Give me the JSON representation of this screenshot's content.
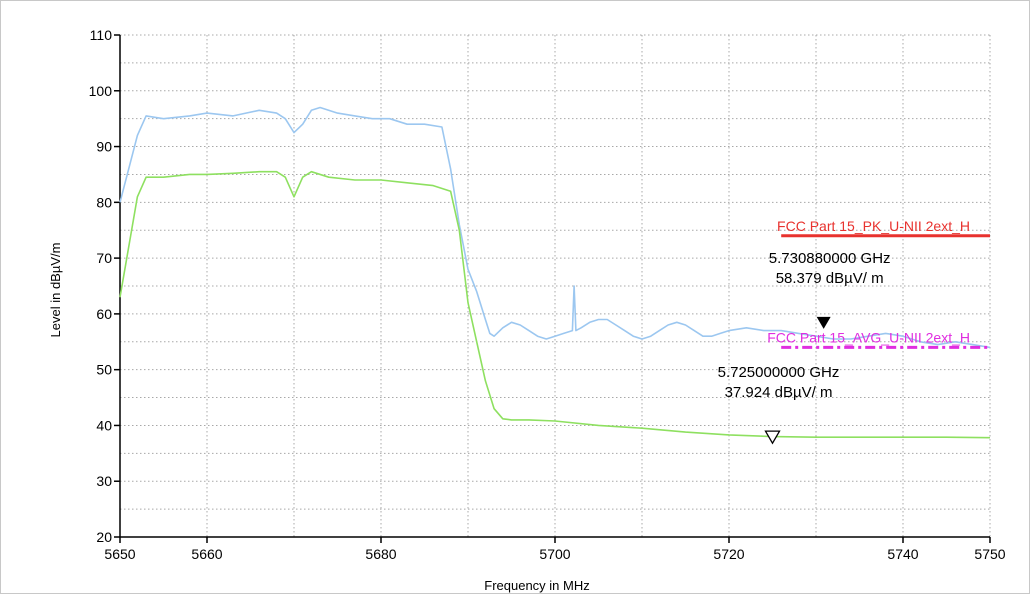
{
  "chart_data": {
    "type": "line",
    "xlabel": "Frequency in MHz",
    "ylabel": "Level in dBµV/m",
    "xlim": [
      5650,
      5750
    ],
    "ylim": [
      20,
      110
    ],
    "x_ticks": [
      5650,
      5660,
      5680,
      5700,
      5720,
      5740,
      5750
    ],
    "y_ticks": [
      20,
      30,
      40,
      50,
      60,
      70,
      80,
      90,
      100,
      110
    ],
    "grid": true,
    "series": [
      {
        "color": "#9cc7f0",
        "x": [
          5650,
          5651,
          5652,
          5653,
          5655,
          5658,
          5660,
          5663,
          5666,
          5668,
          5669,
          5670,
          5671,
          5672,
          5673,
          5675,
          5677,
          5679,
          5681,
          5683,
          5685,
          5687,
          5688,
          5689,
          5690,
          5691,
          5692,
          5692.5,
          5693,
          5694,
          5695,
          5696,
          5697,
          5698,
          5699,
          5700,
          5701,
          5702,
          5702.2,
          5702.4,
          5703,
          5704,
          5705,
          5706,
          5707,
          5708,
          5709,
          5710,
          5711,
          5712,
          5713,
          5714,
          5715,
          5716,
          5717,
          5718,
          5719,
          5720,
          5722,
          5724,
          5726,
          5728,
          5730,
          5732,
          5734,
          5736,
          5738,
          5740,
          5742,
          5744,
          5746,
          5748,
          5750
        ],
        "y": [
          80,
          86,
          92,
          95.5,
          95,
          95.5,
          96,
          95.5,
          96.5,
          96,
          95,
          92.5,
          94,
          96.5,
          97,
          96,
          95.5,
          95,
          95,
          94,
          94,
          93.5,
          86,
          76,
          68,
          64,
          59,
          56.5,
          56,
          57.5,
          58.5,
          58,
          57,
          56,
          55.5,
          56,
          56.5,
          57,
          65,
          57,
          57.5,
          58.5,
          59,
          59,
          58,
          57,
          56,
          55.5,
          56,
          57,
          58,
          58.5,
          58,
          57,
          56,
          56,
          56.5,
          57,
          57.5,
          57,
          57,
          56.5,
          56,
          55.5,
          55.5,
          56,
          56.5,
          56,
          55,
          54.5,
          55,
          54.5,
          54
        ]
      },
      {
        "color": "#8ee060",
        "x": [
          5650,
          5651,
          5652,
          5653,
          5655,
          5658,
          5660,
          5663,
          5666,
          5668,
          5669,
          5670,
          5671,
          5672,
          5674,
          5677,
          5680,
          5683,
          5686,
          5688,
          5689,
          5690,
          5691,
          5692,
          5693,
          5694,
          5695,
          5697,
          5700,
          5705,
          5710,
          5715,
          5720,
          5725,
          5730,
          5735,
          5740,
          5745,
          5750
        ],
        "y": [
          63,
          72,
          81,
          84.5,
          84.5,
          85,
          85,
          85.2,
          85.5,
          85.5,
          84.5,
          81,
          84.5,
          85.5,
          84.5,
          84,
          84,
          83.5,
          83,
          82,
          75,
          62,
          55,
          48,
          43,
          41.2,
          41,
          41,
          40.8,
          40,
          39.5,
          38.8,
          38.3,
          38,
          37.9,
          37.9,
          37.9,
          37.9,
          37.8
        ]
      }
    ],
    "limit_lines": [
      {
        "label": "FCC Part 15_PK_U-NII 2ext_H",
        "value": 74,
        "x_start": 5726,
        "color": "#e8322e",
        "style": "solid"
      },
      {
        "label": "FCC Part 15_AVG_U-NII 2ext_H",
        "value": 54,
        "x_start": 5726,
        "color": "#e02ee0",
        "style": "dashdot"
      }
    ],
    "markers": [
      {
        "freq_label": "5.730880000 GHz",
        "level_label": "58.379 dBµV/ m",
        "x": 5730.88,
        "y": 58.4,
        "symbol": "filled-triangle"
      },
      {
        "freq_label": "5.725000000 GHz",
        "level_label": "37.924 dBµV/ m",
        "x": 5725,
        "y": 37.9,
        "symbol": "hollow-triangle"
      }
    ]
  }
}
